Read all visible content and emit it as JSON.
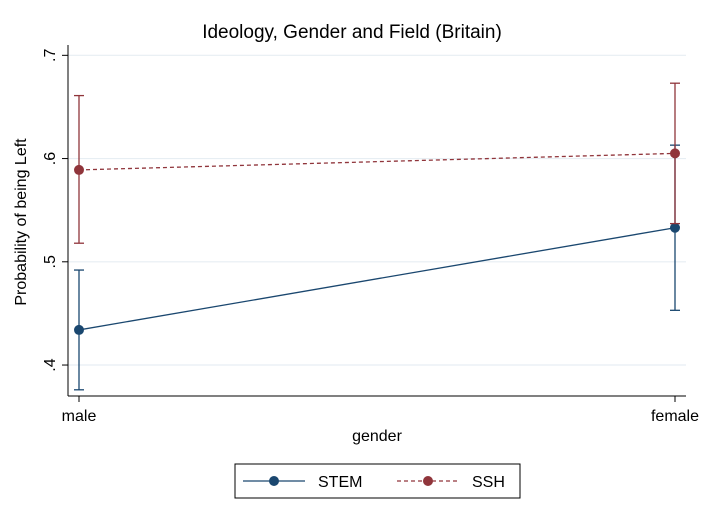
{
  "chart_data": {
    "type": "line",
    "title": "Ideology, Gender and Field (Britain)",
    "xlabel": "gender",
    "ylabel": "Probability of being Left",
    "categories": [
      "male",
      "female"
    ],
    "ylim": [
      0.37,
      0.71
    ],
    "yticks": [
      {
        "value": 0.4,
        "label": ".4"
      },
      {
        "value": 0.5,
        "label": ".5"
      },
      {
        "value": 0.6,
        "label": ".6"
      },
      {
        "value": 0.7,
        "label": ".7"
      }
    ],
    "grid": true,
    "legend_position": "bottom",
    "series": [
      {
        "name": "STEM",
        "color": "#1a476f",
        "dash": "solid",
        "values": [
          0.434,
          0.533
        ],
        "ci_low": [
          0.376,
          0.453
        ],
        "ci_high": [
          0.492,
          0.613
        ]
      },
      {
        "name": "SSH",
        "color": "#90353b",
        "dash": "dashed",
        "values": [
          0.589,
          0.605
        ],
        "ci_low": [
          0.518,
          0.537
        ],
        "ci_high": [
          0.661,
          0.673
        ]
      }
    ]
  }
}
